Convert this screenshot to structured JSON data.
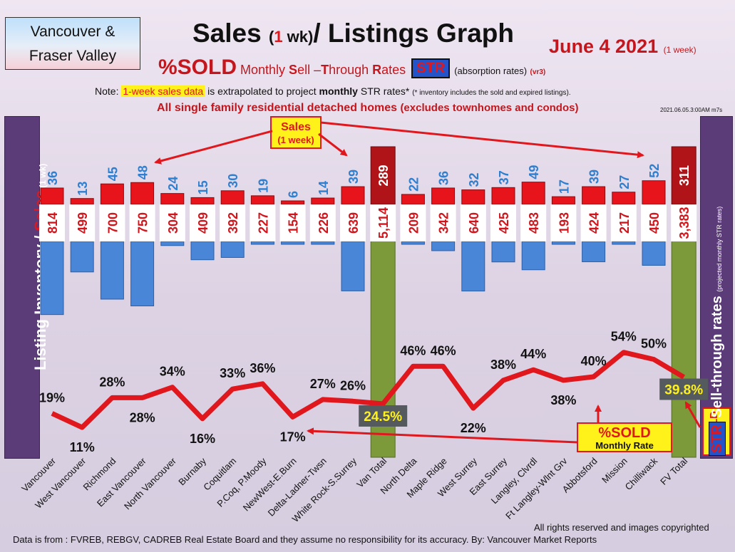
{
  "region": [
    "Vancouver &",
    "Fraser Valley"
  ],
  "title": {
    "prefix": "Sales ",
    "paren_open": "(",
    "one": "1",
    "wk": " wk)",
    "rest": "/ Listings Graph"
  },
  "date": {
    "main": "June 4  2021",
    "note": "(1 week)"
  },
  "subtitle": {
    "sold": "%SOLD",
    "monthly": " Monthly ",
    "S": "S",
    "ell": "ell ",
    "dash": "–",
    "T": "T",
    "hrough": "hrough ",
    "R": "R",
    "ates": "ates",
    "str": "STR",
    "abs": "(absorption rates)",
    "vr": "(vr3)"
  },
  "note": {
    "pre": "Note: ",
    "hl": "1-week sales data",
    "mid": " is extrapolated to project ",
    "b": "monthly",
    "post": " STR rates* ",
    "small": "(* inventory includes the sold and expired listings)."
  },
  "subject": {
    "main": "All single family residential detached homes ",
    "paren": "(excludes townhomes and condos)"
  },
  "version": "2021.06.05.3:00AM m7s",
  "left_axis": {
    "a": "Listing Inventory / ",
    "b": "Sales",
    "c": " (1 wk)"
  },
  "right_axis": {
    "a": "STR",
    "b": " Sell-through rates ",
    "c": "(projected monthly STR rates)"
  },
  "str_rate_label": "%SOLD",
  "callout_sales": {
    "line1": "Sales",
    "line2": "(1 week)"
  },
  "callout_sold": {
    "line1": "%SOLD",
    "line2": "Monthly Rate"
  },
  "footer": {
    "copyright": "All rights reserved and  images copyrighted",
    "source": "Data is from : FVREB, REBGV, CADREB Real Estate Board and they assume no responsibility for its accuracy. By: Vancouver Market Reports"
  },
  "colors": {
    "sales": "#e8141c",
    "inventory": "#4a86d8",
    "total": "#7d9a3a",
    "total_sales": "#b01418",
    "line": "#e0181e",
    "label_blue": "#2f7fd0"
  },
  "chart_data": {
    "type": "bar",
    "categories": [
      "Vancouver",
      "West Vancouver",
      "Richmond",
      "East Vancouver",
      "North Vancouver",
      "Burnaby",
      "Coquitlam",
      "P.Coq, P.Moody",
      "NewWest-E.Burn",
      "Delta-Ladner-Twsn",
      "White Rock-S.Surrey",
      "Van Total",
      "North Delta",
      "Maple Ridge",
      "West Surrey",
      "East Surrey",
      "Langley, Clvrdl",
      "Ft Langley-Wlnt Grv",
      "Abbotsford",
      "Mission",
      "Chilliwack",
      "FV Total"
    ],
    "series": [
      {
        "name": "Sales",
        "values": [
          36,
          13,
          45,
          48,
          24,
          15,
          30,
          19,
          6,
          14,
          39,
          289,
          22,
          36,
          32,
          37,
          49,
          17,
          39,
          27,
          52,
          311
        ]
      },
      {
        "name": "Listing Inventory",
        "values": [
          814,
          499,
          700,
          750,
          304,
          409,
          392,
          227,
          154,
          226,
          639,
          5114,
          209,
          342,
          640,
          425,
          483,
          193,
          424,
          217,
          450,
          3383
        ]
      },
      {
        "name": "%SOLD Monthly Rate",
        "values": [
          19,
          11,
          28,
          28,
          34,
          16,
          33,
          36,
          17,
          27,
          26,
          24.5,
          46,
          46,
          22,
          38,
          44,
          38,
          40,
          54,
          50,
          39.8
        ]
      }
    ],
    "percent_labels": [
      "19%",
      "11%",
      "28%",
      "28%",
      "34%",
      "16%",
      "33%",
      "36%",
      "17%",
      "27%",
      "26%",
      "24.5%",
      "46%",
      "46%",
      "22%",
      "38%",
      "44%",
      "38%",
      "40%",
      "54%",
      "50%",
      "39.8%"
    ],
    "inventory_labels": [
      "814",
      "499",
      "700",
      "750",
      "304",
      "409",
      "392",
      "227",
      "154",
      "226",
      "639",
      "5,114",
      "209",
      "342",
      "640",
      "425",
      "483",
      "193",
      "424",
      "217",
      "450",
      "3,383"
    ],
    "total_indices": [
      11,
      21
    ]
  }
}
